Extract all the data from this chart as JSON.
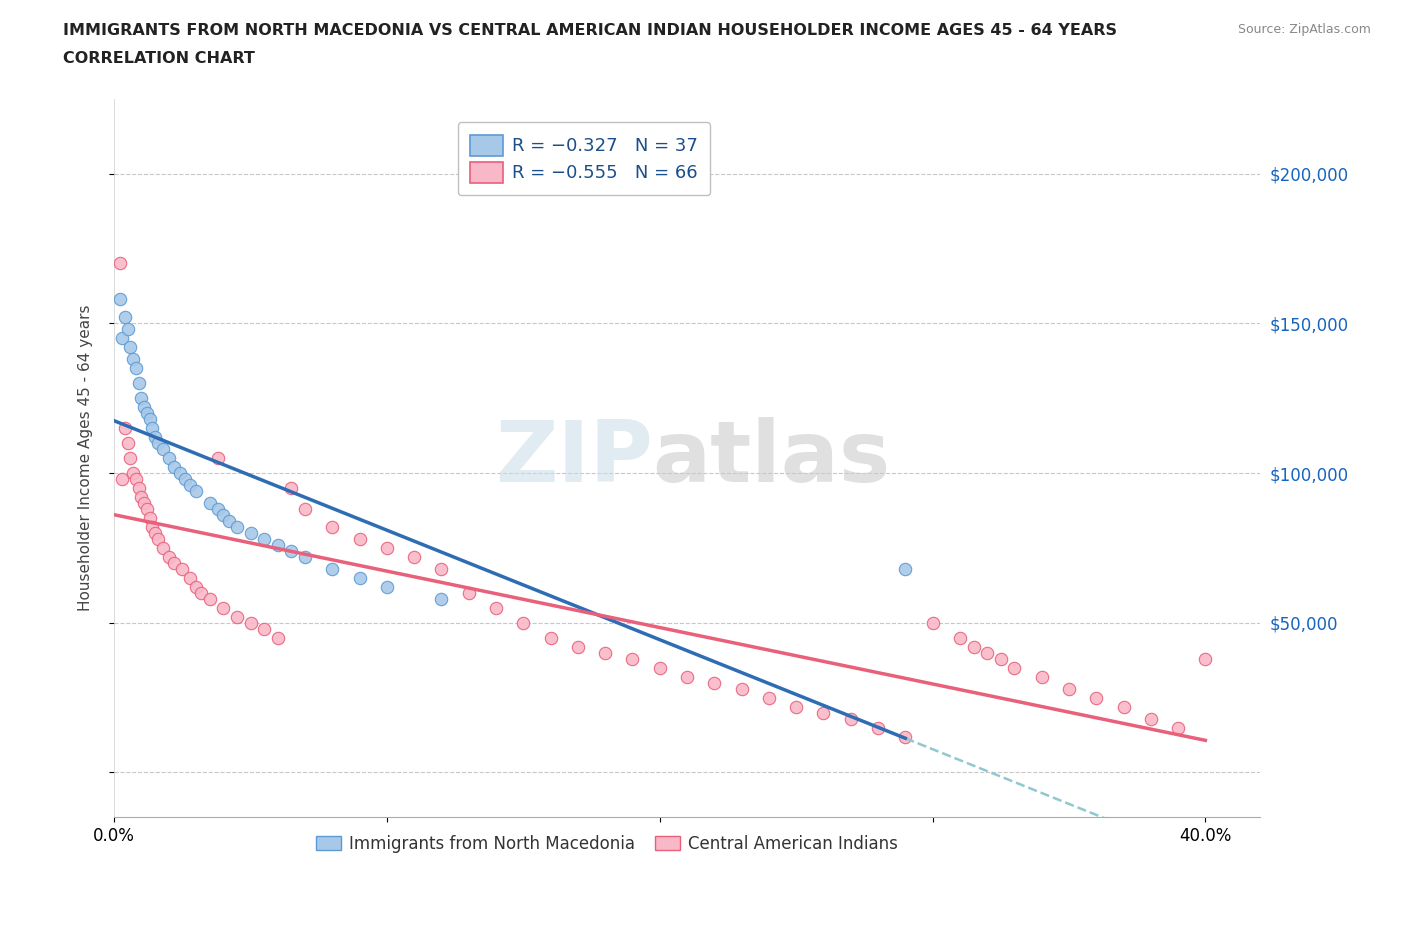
{
  "title_line1": "IMMIGRANTS FROM NORTH MACEDONIA VS CENTRAL AMERICAN INDIAN HOUSEHOLDER INCOME AGES 45 - 64 YEARS",
  "title_line2": "CORRELATION CHART",
  "source_text": "Source: ZipAtlas.com",
  "ylabel": "Householder Income Ages 45 - 64 years",
  "watermark_zip": "ZIP",
  "watermark_atlas": "atlas",
  "blue_color": "#a8c8e8",
  "blue_edge_color": "#5b9bd5",
  "pink_color": "#f9b8c8",
  "pink_edge_color": "#e8607a",
  "blue_line_color": "#2e6db4",
  "pink_line_color": "#e8607a",
  "dashed_line_color": "#90c8d0",
  "right_tick_color": "#1565c0",
  "xlim": [
    0.0,
    0.42
  ],
  "ylim": [
    -15000,
    225000
  ],
  "xtick_values": [
    0.0,
    0.1,
    0.2,
    0.3,
    0.4
  ],
  "xtick_labels": [
    "0.0%",
    "",
    "",
    "",
    "40.0%"
  ],
  "ytick_values": [
    0,
    50000,
    100000,
    150000,
    200000
  ],
  "ytick_labels": [
    "",
    "",
    "",
    "",
    ""
  ],
  "right_ytick_values": [
    50000,
    100000,
    150000,
    200000
  ],
  "right_ytick_labels": [
    "$50,000",
    "$100,000",
    "$150,000",
    "$200,000"
  ],
  "blue_x": [
    0.002,
    0.003,
    0.004,
    0.005,
    0.006,
    0.007,
    0.008,
    0.009,
    0.01,
    0.011,
    0.012,
    0.013,
    0.014,
    0.015,
    0.016,
    0.018,
    0.02,
    0.022,
    0.024,
    0.026,
    0.028,
    0.03,
    0.035,
    0.038,
    0.04,
    0.042,
    0.045,
    0.05,
    0.055,
    0.06,
    0.065,
    0.07,
    0.08,
    0.09,
    0.1,
    0.12,
    0.29
  ],
  "blue_y": [
    158000,
    145000,
    152000,
    148000,
    142000,
    138000,
    135000,
    130000,
    125000,
    122000,
    120000,
    118000,
    115000,
    112000,
    110000,
    108000,
    105000,
    102000,
    100000,
    98000,
    96000,
    94000,
    90000,
    88000,
    86000,
    84000,
    82000,
    80000,
    78000,
    76000,
    74000,
    72000,
    68000,
    65000,
    62000,
    58000,
    68000
  ],
  "pink_x": [
    0.002,
    0.003,
    0.004,
    0.005,
    0.006,
    0.007,
    0.008,
    0.009,
    0.01,
    0.011,
    0.012,
    0.013,
    0.014,
    0.015,
    0.016,
    0.018,
    0.02,
    0.022,
    0.025,
    0.028,
    0.03,
    0.032,
    0.035,
    0.038,
    0.04,
    0.045,
    0.05,
    0.055,
    0.06,
    0.065,
    0.07,
    0.08,
    0.09,
    0.1,
    0.11,
    0.12,
    0.13,
    0.14,
    0.15,
    0.16,
    0.17,
    0.18,
    0.19,
    0.2,
    0.21,
    0.22,
    0.23,
    0.24,
    0.25,
    0.26,
    0.27,
    0.28,
    0.29,
    0.3,
    0.31,
    0.315,
    0.32,
    0.325,
    0.33,
    0.34,
    0.35,
    0.36,
    0.37,
    0.38,
    0.39,
    0.4
  ],
  "pink_y": [
    170000,
    98000,
    115000,
    110000,
    105000,
    100000,
    98000,
    95000,
    92000,
    90000,
    88000,
    85000,
    82000,
    80000,
    78000,
    75000,
    72000,
    70000,
    68000,
    65000,
    62000,
    60000,
    58000,
    105000,
    55000,
    52000,
    50000,
    48000,
    45000,
    95000,
    88000,
    82000,
    78000,
    75000,
    72000,
    68000,
    60000,
    55000,
    50000,
    45000,
    42000,
    40000,
    38000,
    35000,
    32000,
    30000,
    28000,
    25000,
    22000,
    20000,
    18000,
    15000,
    12000,
    50000,
    45000,
    42000,
    40000,
    38000,
    35000,
    32000,
    28000,
    25000,
    22000,
    18000,
    15000,
    38000
  ]
}
